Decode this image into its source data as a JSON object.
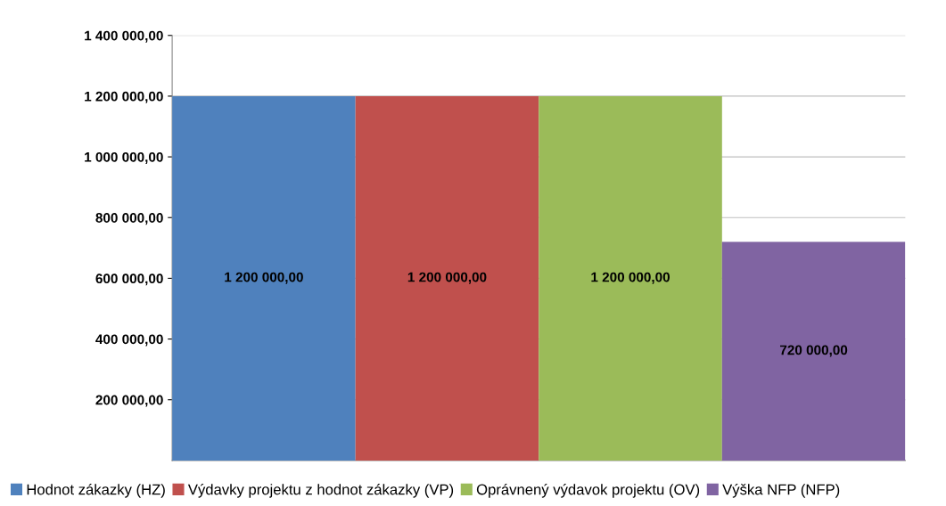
{
  "chart_data": {
    "type": "bar",
    "categories": [
      null
    ],
    "series": [
      {
        "name": "Hodnot zákazky (HZ)",
        "color": "#4f81bd",
        "values": [
          1200000
        ],
        "value_labels": [
          "1 200 000,00"
        ]
      },
      {
        "name": "Výdavky projektu z hodnot zákazky (VP)",
        "color": "#c0504d",
        "values": [
          1200000
        ],
        "value_labels": [
          "1 200 000,00"
        ]
      },
      {
        "name": "Oprávnený výdavok projektu (OV)",
        "color": "#9bbb59",
        "values": [
          1200000
        ],
        "value_labels": [
          "1 200 000,00"
        ]
      },
      {
        "name": "Výška NFP (NFP)",
        "color": "#8064a2",
        "values": [
          720000
        ],
        "value_labels": [
          "720 000,00"
        ]
      }
    ],
    "ylim": [
      0,
      1400000
    ],
    "yticks": [
      {
        "value": 200000,
        "label": "200 000,00"
      },
      {
        "value": 400000,
        "label": "400 000,00"
      },
      {
        "value": 600000,
        "label": "600 000,00"
      },
      {
        "value": 800000,
        "label": "800 000,00"
      },
      {
        "value": 1000000,
        "label": "1 000 000,00"
      },
      {
        "value": 1200000,
        "label": "1 200 000,00"
      },
      {
        "value": 1400000,
        "label": "1 400 000,00"
      }
    ],
    "grid": "y",
    "legend": "bottom",
    "tick_labels": "y"
  }
}
